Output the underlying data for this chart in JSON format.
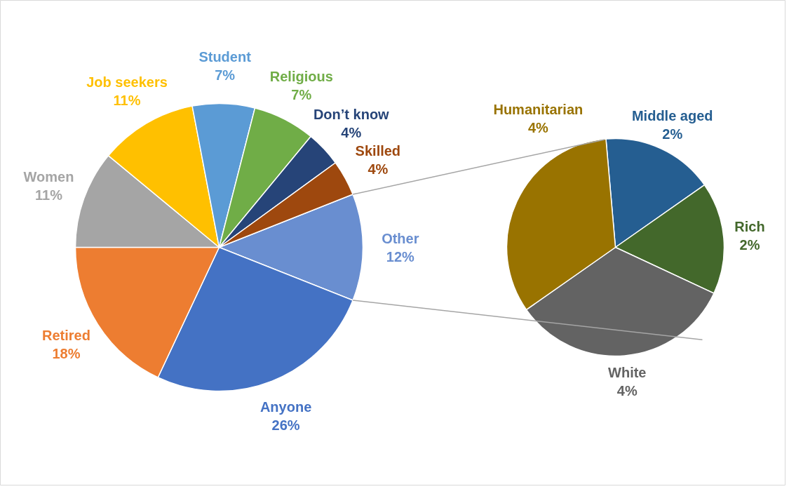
{
  "chart_data": [
    {
      "type": "pie",
      "categories": [
        "Other",
        "Anyone",
        "Retired",
        "Women",
        "Job seekers",
        "Student",
        "Religious",
        "Don’t know",
        "Skilled"
      ],
      "values": [
        12,
        26,
        18,
        11,
        11,
        7,
        7,
        4,
        4
      ],
      "value_labels": [
        "12%",
        "26%",
        "18%",
        "11%",
        "11%",
        "7%",
        "7%",
        "4%",
        "4%"
      ],
      "colors": [
        "#698ed0",
        "#4472c4",
        "#ed7d31",
        "#a5a5a5",
        "#ffc000",
        "#5b9bd5",
        "#70ad47",
        "#264478",
        "#9e480e"
      ]
    },
    {
      "type": "pie",
      "categories": [
        "Middle aged",
        "Rich",
        "White",
        "Humanitarian"
      ],
      "values": [
        2,
        2,
        4,
        4
      ],
      "value_labels": [
        "2%",
        "2%",
        "4%",
        "4%"
      ],
      "colors": [
        "#255e91",
        "#43682b",
        "#636363",
        "#997300"
      ]
    }
  ]
}
